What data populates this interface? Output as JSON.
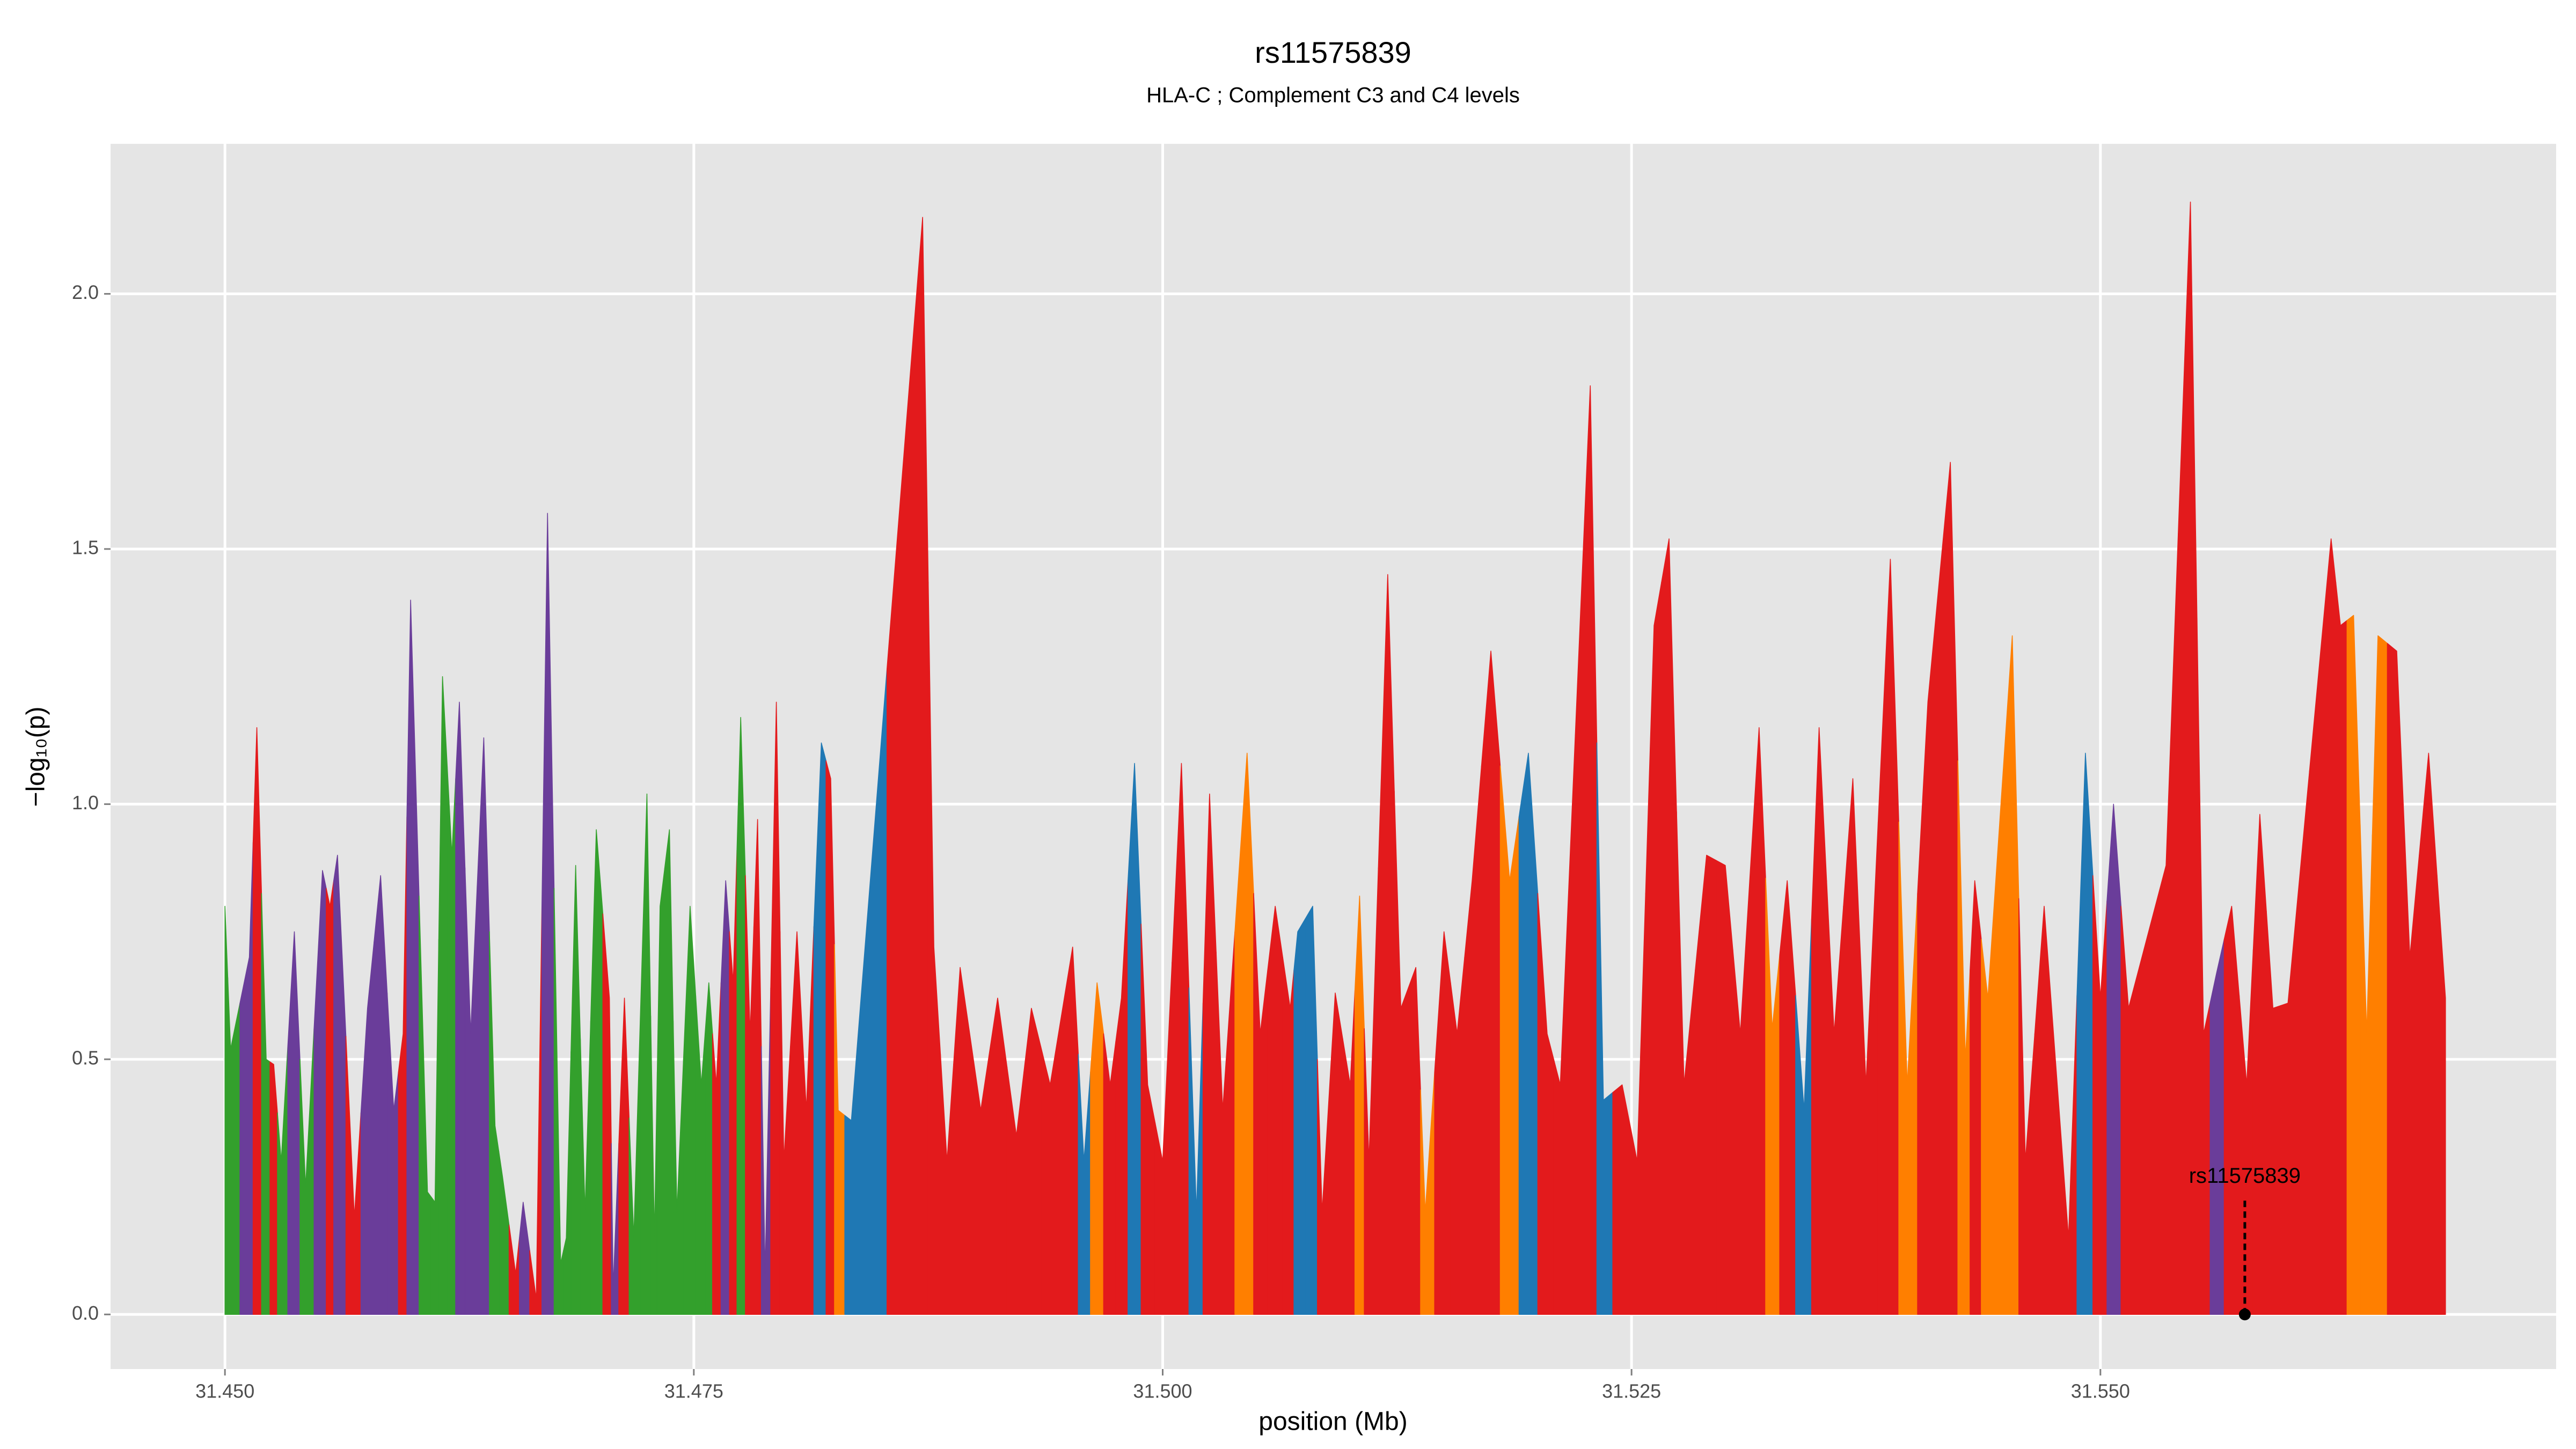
{
  "chart_data": {
    "type": "area",
    "title": "rs11575839",
    "subtitle": "HLA-C ; Complement C3 and C4 levels",
    "x_label": "position (Mb)",
    "y_label": "−log₁₀(p)",
    "xlim": [
      31.4439,
      31.5743
    ],
    "ylim": [
      -0.107,
      2.294
    ],
    "xticks": [
      {
        "value": 31.45,
        "label": "31.450"
      },
      {
        "value": 31.475,
        "label": "31.475"
      },
      {
        "value": 31.5,
        "label": "31.500"
      },
      {
        "value": 31.525,
        "label": "31.525"
      },
      {
        "value": 31.55,
        "label": "31.550"
      }
    ],
    "yticks": [
      {
        "value": 0,
        "label": "0.0"
      },
      {
        "value": 0.5,
        "label": "0.5"
      },
      {
        "value": 1,
        "label": "1.0"
      },
      {
        "value": 1.5,
        "label": "1.5"
      },
      {
        "value": 2,
        "label": "2.0"
      }
    ],
    "grid": true,
    "x": [
      31.45,
      31.4503,
      31.4513,
      31.4517,
      31.4522,
      31.4526,
      31.453,
      31.4537,
      31.4543,
      31.4552,
      31.4556,
      31.456,
      31.4569,
      31.4576,
      31.4583,
      31.459,
      31.4595,
      31.4599,
      31.4608,
      31.4612,
      31.4616,
      31.4621,
      31.4625,
      31.4631,
      31.4638,
      31.4644,
      31.4648,
      31.4655,
      31.4659,
      31.4666,
      31.4672,
      31.4679,
      31.4682,
      31.4687,
      31.4692,
      31.4698,
      31.4705,
      31.4707,
      31.4713,
      31.4718,
      31.4725,
      31.4729,
      31.4732,
      31.4737,
      31.4741,
      31.4748,
      31.4754,
      31.4758,
      31.4762,
      31.4767,
      31.4771,
      31.4775,
      31.478,
      31.4784,
      31.4788,
      31.4794,
      31.4798,
      31.4805,
      31.481,
      31.4818,
      31.4823,
      31.4827,
      31.4834,
      31.4872,
      31.4878,
      31.4885,
      31.4892,
      31.4903,
      31.4912,
      31.4922,
      31.493,
      31.494,
      31.4952,
      31.4958,
      31.4965,
      31.4972,
      31.4978,
      31.4985,
      31.4992,
      31.5,
      31.501,
      31.5018,
      31.5025,
      31.5032,
      31.5045,
      31.5052,
      31.506,
      31.5068,
      31.5072,
      31.508,
      31.5085,
      31.5092,
      31.51,
      31.5105,
      31.511,
      31.512,
      31.5127,
      31.5135,
      31.514,
      31.515,
      31.5157,
      31.5165,
      31.5175,
      31.5185,
      31.5195,
      31.5205,
      31.5212,
      31.5228,
      31.5235,
      31.5245,
      31.5253,
      31.5262,
      31.527,
      31.5278,
      31.529,
      31.53,
      31.5308,
      31.5318,
      31.5325,
      31.5333,
      31.5342,
      31.535,
      31.5358,
      31.5368,
      31.5375,
      31.5388,
      31.5397,
      31.5408,
      31.542,
      31.5428,
      31.5433,
      31.544,
      31.5453,
      31.546,
      31.547,
      31.5483,
      31.5492,
      31.55,
      31.5507,
      31.5515,
      31.5535,
      31.5548,
      31.5555,
      31.5562,
      31.557,
      31.5578,
      31.5585,
      31.5592,
      31.56,
      31.5623,
      31.5628,
      31.5635,
      31.5642,
      31.5648,
      31.5658,
      31.5665,
      31.5675,
      31.5684
    ],
    "values": [
      0.8,
      0.52,
      0.7,
      1.15,
      0.5,
      0.49,
      0.3,
      0.75,
      0.25,
      0.87,
      0.8,
      0.9,
      0.19,
      0.6,
      0.86,
      0.4,
      0.55,
      1.4,
      0.24,
      0.22,
      1.25,
      0.9,
      1.2,
      0.55,
      1.13,
      0.37,
      0.27,
      0.08,
      0.22,
      0.03,
      1.57,
      0.1,
      0.15,
      0.88,
      0.2,
      0.95,
      0.62,
      0.05,
      0.62,
      0.15,
      1.02,
      0.15,
      0.8,
      0.95,
      0.2,
      0.8,
      0.45,
      0.65,
      0.45,
      0.85,
      0.65,
      1.17,
      0.55,
      0.97,
      0.08,
      1.2,
      0.3,
      0.75,
      0.4,
      1.12,
      1.05,
      0.4,
      0.38,
      2.15,
      0.72,
      0.3,
      0.68,
      0.4,
      0.62,
      0.35,
      0.6,
      0.45,
      0.72,
      0.3,
      0.65,
      0.45,
      0.62,
      1.08,
      0.45,
      0.3,
      1.08,
      0.2,
      1.02,
      0.4,
      1.1,
      0.55,
      0.8,
      0.6,
      0.75,
      0.8,
      0.2,
      0.63,
      0.45,
      0.82,
      0.3,
      1.45,
      0.6,
      0.68,
      0.2,
      0.75,
      0.55,
      0.85,
      1.3,
      0.85,
      1.1,
      0.55,
      0.45,
      1.82,
      0.42,
      0.45,
      0.3,
      1.35,
      1.52,
      0.45,
      0.9,
      0.88,
      0.55,
      1.15,
      0.56,
      0.85,
      0.4,
      1.15,
      0.55,
      1.05,
      0.45,
      1.48,
      0.45,
      1.2,
      1.67,
      0.5,
      0.85,
      0.62,
      1.33,
      0.3,
      0.8,
      0.15,
      1.1,
      0.62,
      1.0,
      0.6,
      0.88,
      2.18,
      0.55,
      0.67,
      0.8,
      0.45,
      0.98,
      0.6,
      0.61,
      1.52,
      1.35,
      1.37,
      0.55,
      1.33,
      1.3,
      0.7,
      1.1,
      0.62
    ],
    "colors": [
      "#33a02c",
      "#33a02c",
      "#6a3d9a",
      "#e31a1c",
      "#33a02c",
      "#e31a1c",
      "#33a02c",
      "#6a3d9a",
      "#33a02c",
      "#6a3d9a",
      "#e31a1c",
      "#6a3d9a",
      "#e31a1c",
      "#6a3d9a",
      "#6a3d9a",
      "#6a3d9a",
      "#e31a1c",
      "#6a3d9a",
      "#33a02c",
      "#33a02c",
      "#33a02c",
      "#33a02c",
      "#6a3d9a",
      "#6a3d9a",
      "#6a3d9a",
      "#33a02c",
      "#33a02c",
      "#e31a1c",
      "#6a3d9a",
      "#e31a1c",
      "#6a3d9a",
      "#33a02c",
      "#33a02c",
      "#33a02c",
      "#33a02c",
      "#33a02c",
      "#e31a1c",
      "#6a3d9a",
      "#e31a1c",
      "#33a02c",
      "#33a02c",
      "#33a02c",
      "#33a02c",
      "#33a02c",
      "#33a02c",
      "#33a02c",
      "#33a02c",
      "#33a02c",
      "#e31a1c",
      "#6a3d9a",
      "#e31a1c",
      "#33a02c",
      "#e31a1c",
      "#e31a1c",
      "#6a3d9a",
      "#e31a1c",
      "#e31a1c",
      "#e31a1c",
      "#e31a1c",
      "#1f78b4",
      "#e31a1c",
      "#ff7f00",
      "#1f78b4",
      "#e31a1c",
      "#e31a1c",
      "#e31a1c",
      "#e31a1c",
      "#e31a1c",
      "#e31a1c",
      "#e31a1c",
      "#e31a1c",
      "#e31a1c",
      "#e31a1c",
      "#1f78b4",
      "#ff7f00",
      "#e31a1c",
      "#e31a1c",
      "#1f78b4",
      "#e31a1c",
      "#e31a1c",
      "#e31a1c",
      "#1f78b4",
      "#e31a1c",
      "#e31a1c",
      "#ff7f00",
      "#e31a1c",
      "#e31a1c",
      "#e31a1c",
      "#1f78b4",
      "#1f78b4",
      "#e31a1c",
      "#e31a1c",
      "#e31a1c",
      "#ff7f00",
      "#e31a1c",
      "#e31a1c",
      "#e31a1c",
      "#e31a1c",
      "#ff7f00",
      "#e31a1c",
      "#e31a1c",
      "#e31a1c",
      "#e31a1c",
      "#ff7f00",
      "#1f78b4",
      "#e31a1c",
      "#e31a1c",
      "#e31a1c",
      "#1f78b4",
      "#e31a1c",
      "#e31a1c",
      "#e31a1c",
      "#e31a1c",
      "#e31a1c",
      "#e31a1c",
      "#e31a1c",
      "#e31a1c",
      "#e31a1c",
      "#ff7f00",
      "#e31a1c",
      "#1f78b4",
      "#e31a1c",
      "#e31a1c",
      "#e31a1c",
      "#e31a1c",
      "#e31a1c",
      "#ff7f00",
      "#e31a1c",
      "#e31a1c",
      "#ff7f00",
      "#e31a1c",
      "#ff7f00",
      "#ff7f00",
      "#e31a1c",
      "#e31a1c",
      "#e31a1c",
      "#1f78b4",
      "#e31a1c",
      "#6a3d9a",
      "#e31a1c",
      "#e31a1c",
      "#e31a1c",
      "#e31a1c",
      "#6a3d9a",
      "#e31a1c",
      "#e31a1c",
      "#e31a1c",
      "#e31a1c",
      "#e31a1c",
      "#e31a1c",
      "#e31a1c",
      "#ff7f00",
      "#ff7f00",
      "#ff7f00",
      "#e31a1c",
      "#e31a1c",
      "#e31a1c",
      "#e31a1c"
    ],
    "annotation": {
      "text": "rs11575839",
      "x": 31.5577,
      "y": 0
    }
  }
}
